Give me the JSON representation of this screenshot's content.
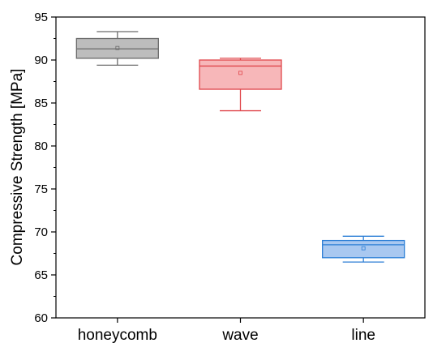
{
  "chart_data": {
    "type": "box",
    "title": "",
    "xlabel": "",
    "ylabel": "Compressive Strength [MPa]",
    "ylim": [
      60,
      95
    ],
    "yticks": [
      60,
      65,
      70,
      75,
      80,
      85,
      90,
      95
    ],
    "ytick_labels": [
      "60",
      "65",
      "70",
      "75",
      "80",
      "85",
      "90",
      "95"
    ],
    "grid": false,
    "legend": "none",
    "categories": [
      "honeycomb",
      "wave",
      "line"
    ],
    "boxes": [
      {
        "category": "honeycomb",
        "whisker_low": 89.4,
        "q1": 90.2,
        "median": 91.3,
        "q3": 92.5,
        "whisker_high": 93.3,
        "mean": 91.4,
        "stroke": "#6b6b6b",
        "fill": "#bdbdbd"
      },
      {
        "category": "wave",
        "whisker_low": 84.1,
        "q1": 86.6,
        "median": 89.3,
        "q3": 90.0,
        "whisker_high": 90.2,
        "mean": 88.5,
        "stroke": "#e0474c",
        "fill": "#f7b7b9"
      },
      {
        "category": "line",
        "whisker_low": 66.5,
        "q1": 67.0,
        "median": 68.5,
        "q3": 69.0,
        "whisker_high": 69.5,
        "mean": 68.1,
        "stroke": "#2d7fd6",
        "fill": "#a9c8f0"
      }
    ]
  }
}
